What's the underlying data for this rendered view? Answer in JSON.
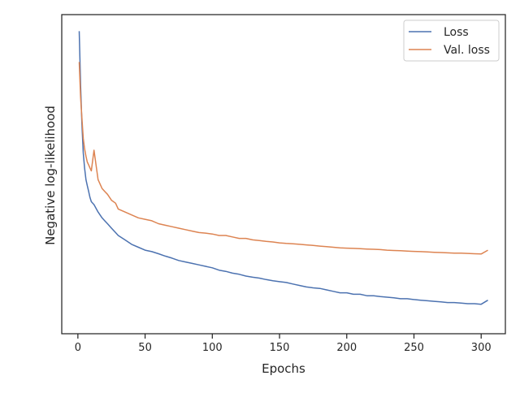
{
  "chart_data": {
    "type": "line",
    "xlabel": "Epochs",
    "ylabel": "Negative log-likelihood",
    "xlim": [
      -12,
      318
    ],
    "ylim": [
      0.0,
      1.0
    ],
    "x_ticks": [
      0,
      50,
      100,
      150,
      200,
      250,
      300
    ],
    "y_tick_labels_shown": false,
    "grid": false,
    "legend_position": "top-right",
    "series": [
      {
        "name": "Loss",
        "color": "#4c72b0",
        "x": [
          1,
          2,
          3,
          4,
          5,
          6,
          7,
          8,
          9,
          10,
          12,
          15,
          18,
          20,
          22,
          25,
          28,
          30,
          35,
          40,
          45,
          50,
          55,
          60,
          65,
          70,
          75,
          80,
          85,
          90,
          95,
          100,
          105,
          110,
          115,
          120,
          125,
          130,
          135,
          140,
          145,
          150,
          155,
          160,
          165,
          170,
          175,
          180,
          185,
          190,
          195,
          200,
          205,
          210,
          215,
          220,
          225,
          230,
          235,
          240,
          245,
          250,
          255,
          260,
          265,
          270,
          275,
          280,
          285,
          290,
          295,
          300,
          305
        ],
        "y": [
          0.985,
          0.8,
          0.67,
          0.57,
          0.52,
          0.48,
          0.46,
          0.44,
          0.42,
          0.405,
          0.395,
          0.37,
          0.35,
          0.34,
          0.33,
          0.315,
          0.3,
          0.29,
          0.275,
          0.26,
          0.25,
          0.24,
          0.235,
          0.228,
          0.22,
          0.213,
          0.205,
          0.2,
          0.195,
          0.19,
          0.185,
          0.18,
          0.172,
          0.168,
          0.162,
          0.158,
          0.152,
          0.148,
          0.145,
          0.14,
          0.136,
          0.133,
          0.13,
          0.125,
          0.12,
          0.115,
          0.112,
          0.11,
          0.105,
          0.1,
          0.095,
          0.095,
          0.09,
          0.09,
          0.085,
          0.085,
          0.082,
          0.08,
          0.078,
          0.075,
          0.075,
          0.072,
          0.07,
          0.068,
          0.066,
          0.064,
          0.062,
          0.062,
          0.06,
          0.058,
          0.058,
          0.056,
          0.07
        ]
      },
      {
        "name": "Val. loss",
        "color": "#dd8452",
        "x": [
          1,
          2,
          3,
          4,
          5,
          6,
          7,
          8,
          9,
          10,
          12,
          15,
          18,
          20,
          22,
          25,
          28,
          30,
          35,
          40,
          45,
          50,
          55,
          60,
          65,
          70,
          75,
          80,
          85,
          90,
          95,
          100,
          105,
          110,
          115,
          120,
          125,
          130,
          135,
          140,
          145,
          150,
          155,
          160,
          165,
          170,
          175,
          180,
          185,
          190,
          195,
          200,
          205,
          210,
          215,
          220,
          225,
          230,
          235,
          240,
          245,
          250,
          255,
          260,
          265,
          270,
          275,
          280,
          285,
          290,
          295,
          300,
          305
        ],
        "y": [
          0.88,
          0.76,
          0.69,
          0.62,
          0.585,
          0.56,
          0.54,
          0.53,
          0.52,
          0.51,
          0.58,
          0.48,
          0.45,
          0.44,
          0.43,
          0.41,
          0.4,
          0.38,
          0.37,
          0.36,
          0.35,
          0.345,
          0.34,
          0.33,
          0.325,
          0.32,
          0.315,
          0.31,
          0.305,
          0.3,
          0.298,
          0.295,
          0.29,
          0.29,
          0.285,
          0.28,
          0.28,
          0.275,
          0.273,
          0.27,
          0.268,
          0.265,
          0.263,
          0.262,
          0.26,
          0.258,
          0.256,
          0.254,
          0.252,
          0.25,
          0.248,
          0.247,
          0.246,
          0.245,
          0.244,
          0.243,
          0.242,
          0.24,
          0.239,
          0.238,
          0.237,
          0.236,
          0.235,
          0.234,
          0.233,
          0.232,
          0.231,
          0.23,
          0.23,
          0.229,
          0.228,
          0.227,
          0.24
        ]
      }
    ]
  }
}
